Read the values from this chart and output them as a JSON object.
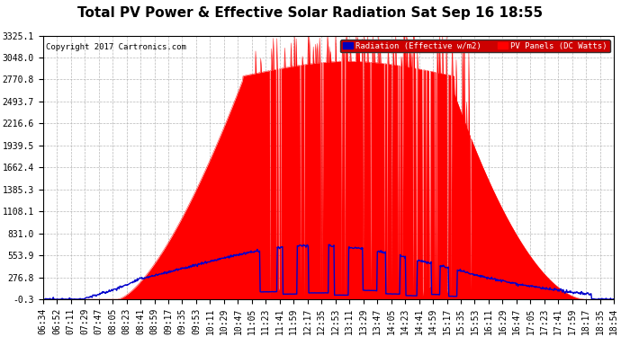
{
  "title": "Total PV Power & Effective Solar Radiation Sat Sep 16 18:55",
  "copyright": "Copyright 2017 Cartronics.com",
  "legend_radiation": "Radiation (Effective w/m2)",
  "legend_pv": "PV Panels (DC Watts)",
  "yticks": [
    3325.1,
    3048.0,
    2770.8,
    2493.7,
    2216.6,
    1939.5,
    1662.4,
    1385.3,
    1108.1,
    831.0,
    553.9,
    276.8,
    -0.3
  ],
  "ymin": -0.3,
  "ymax": 3325.1,
  "bg_color": "#ffffff",
  "plot_bg_color": "#ffffff",
  "grid_color": "#b0b0b0",
  "red_color": "#ff0000",
  "blue_color": "#0000cc",
  "title_fontsize": 11,
  "tick_fontsize": 7,
  "xtick_labels": [
    "06:34",
    "06:52",
    "07:11",
    "07:29",
    "07:47",
    "08:05",
    "08:23",
    "08:41",
    "08:59",
    "09:17",
    "09:35",
    "09:53",
    "10:11",
    "10:29",
    "10:47",
    "11:05",
    "11:23",
    "11:41",
    "11:59",
    "12:17",
    "12:35",
    "12:53",
    "13:11",
    "13:29",
    "13:47",
    "14:05",
    "14:23",
    "14:41",
    "14:59",
    "15:17",
    "15:35",
    "15:53",
    "16:11",
    "16:29",
    "16:47",
    "17:05",
    "17:23",
    "17:41",
    "17:59",
    "18:17",
    "18:35",
    "18:54"
  ]
}
